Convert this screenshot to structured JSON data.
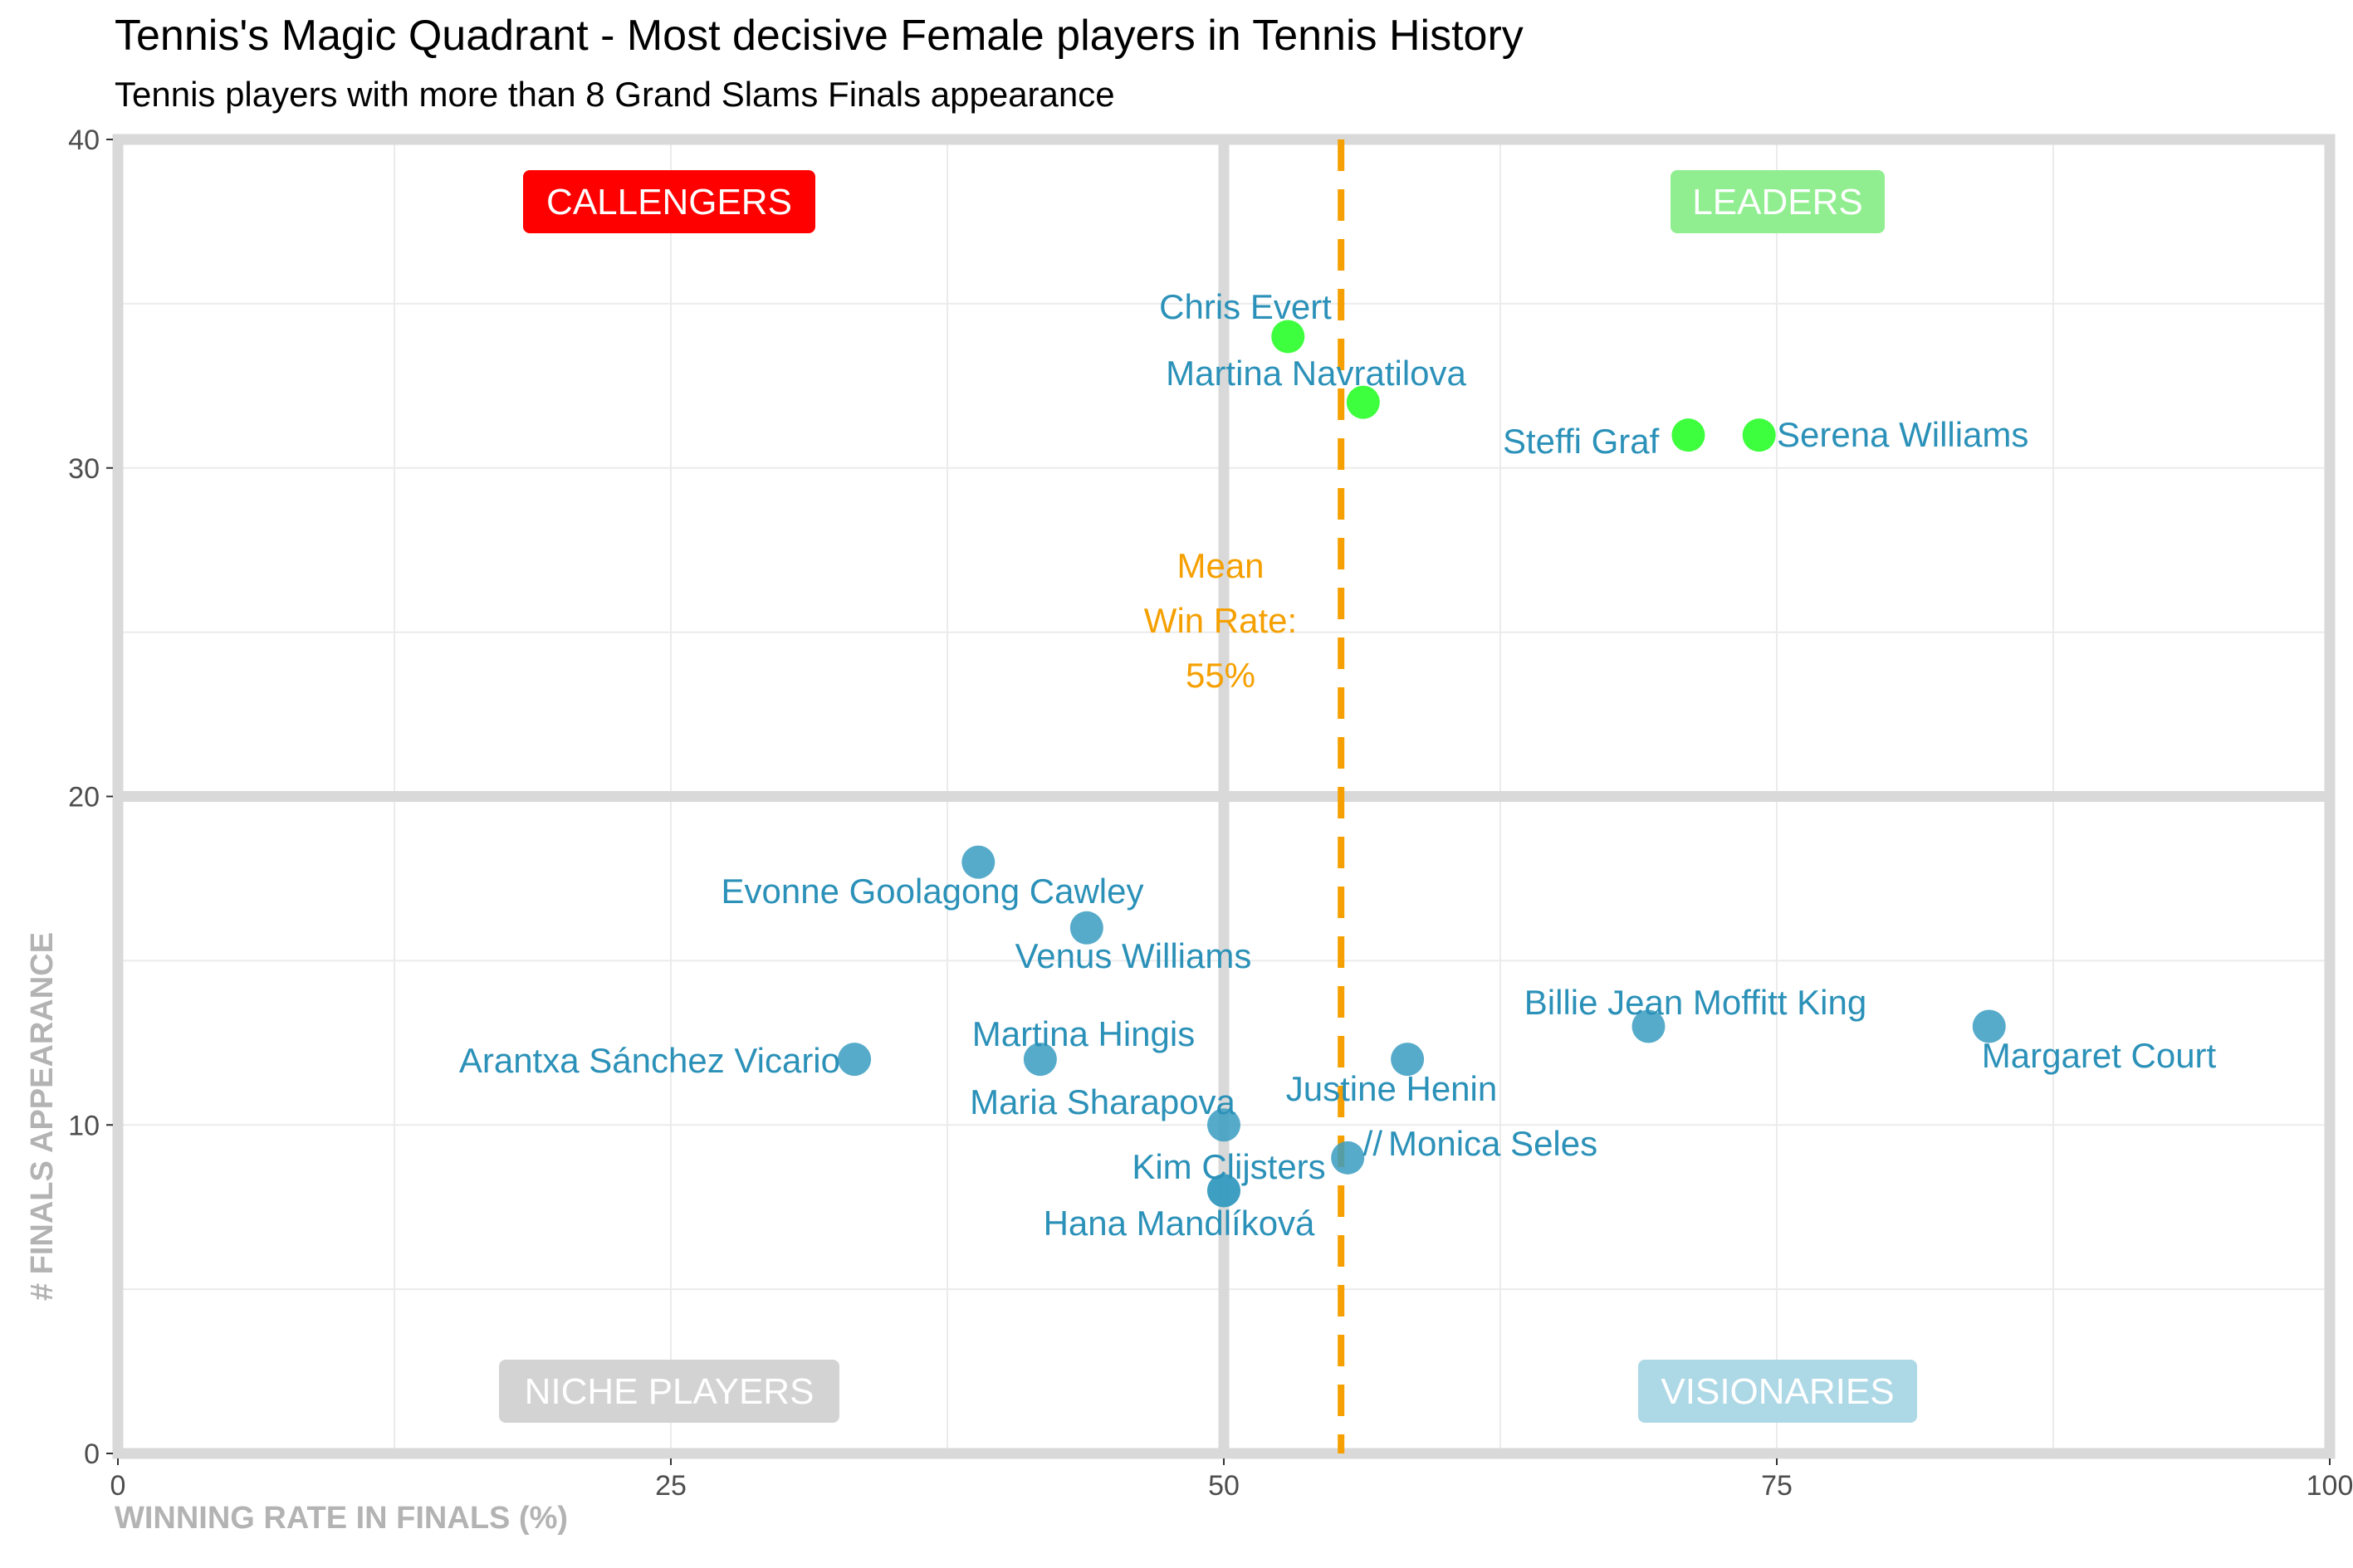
{
  "chart_data": {
    "type": "scatter",
    "title": "Tennis's Magic Quadrant - Most decisive Female players in Tennis History",
    "subtitle": "Tennis players with more than 8 Grand Slams Finals appearance",
    "xlabel": "WINNING RATE IN FINALS (%)",
    "ylabel": "# FINALS APPEARANCE",
    "xlim": [
      0,
      100
    ],
    "ylim": [
      0,
      40
    ],
    "x_ticks": [
      "0",
      "25",
      "50",
      "75",
      "100"
    ],
    "y_ticks": [
      "0",
      "10",
      "20",
      "30",
      "40"
    ],
    "grid": true,
    "quadrant_dividers": {
      "x": 50,
      "y": 20
    },
    "mean_line": {
      "x": 55.3,
      "label_lines": [
        "Mean",
        "Win Rate:",
        "55%"
      ]
    },
    "quadrants": [
      {
        "label": "CALLENGERS",
        "color": "#ff0000"
      },
      {
        "label": "LEADERS",
        "color": "#90ee90"
      },
      {
        "label": "NICHE PLAYERS",
        "color": "#d3d3d3"
      },
      {
        "label": "VISIONARIES",
        "color": "#add8e6"
      }
    ],
    "colors": {
      "leader_point": "#33ff33",
      "other_point": "#3a9cc1",
      "label": "#2b91b8",
      "mean": "#f5a000",
      "frame": "#d9d9d9"
    },
    "points": [
      {
        "name": "Chris Evert",
        "x": 52.9,
        "y": 34,
        "group": "leader"
      },
      {
        "name": "Martina Navratilova",
        "x": 56.3,
        "y": 32,
        "group": "leader"
      },
      {
        "name": "Steffi Graf",
        "x": 71.0,
        "y": 31,
        "group": "leader"
      },
      {
        "name": "Serena Williams",
        "x": 74.2,
        "y": 31,
        "group": "leader"
      },
      {
        "name": "Evonne Goolagong Cawley",
        "x": 38.9,
        "y": 18,
        "group": "other"
      },
      {
        "name": "Venus Williams",
        "x": 43.8,
        "y": 16,
        "group": "other"
      },
      {
        "name": "Billie Jean Moffitt King",
        "x": 69.2,
        "y": 13,
        "group": "other"
      },
      {
        "name": "Margaret Court",
        "x": 84.6,
        "y": 13,
        "group": "other"
      },
      {
        "name": "Arantxa Sánchez Vicario",
        "x": 33.3,
        "y": 12,
        "group": "other"
      },
      {
        "name": "Martina Hingis",
        "x": 41.7,
        "y": 12,
        "group": "other"
      },
      {
        "name": "Justine Henin",
        "x": 58.3,
        "y": 12,
        "group": "other"
      },
      {
        "name": "Maria Sharapova",
        "x": 50.0,
        "y": 10,
        "group": "other"
      },
      {
        "name": "Monica Seles",
        "x": 55.6,
        "y": 9,
        "group": "other"
      },
      {
        "name": "Kim Clijsters",
        "x": 50.0,
        "y": 8,
        "group": "other"
      },
      {
        "name": "Hana Mandlíková",
        "x": 50.0,
        "y": 8,
        "group": "other"
      }
    ],
    "annotation": "//"
  }
}
